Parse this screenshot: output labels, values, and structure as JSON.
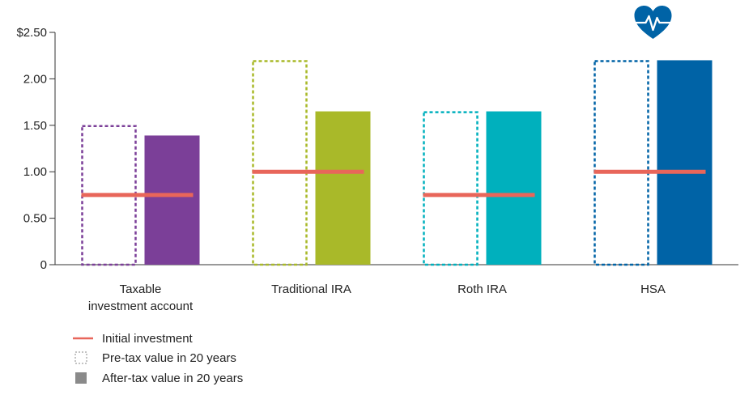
{
  "chart_data": {
    "type": "bar",
    "categories": [
      [
        "Taxable",
        "investment account"
      ],
      [
        "Traditional IRA"
      ],
      [
        "Roth IRA"
      ],
      [
        "HSA"
      ]
    ],
    "y_tick_labels": [
      "$2.50",
      "2.00",
      "1.50",
      "1.00",
      "0.50",
      "0"
    ],
    "ylim": [
      0,
      2.5
    ],
    "series": [
      {
        "name": "Pre-tax value in 20 years",
        "style": "dashed-outline",
        "values": [
          1.5,
          2.2,
          1.65,
          2.2
        ]
      },
      {
        "name": "After-tax value in 20 years",
        "style": "solid",
        "values": [
          1.39,
          1.65,
          1.65,
          2.2
        ]
      },
      {
        "name": "Initial investment",
        "style": "line",
        "values": [
          0.75,
          1.0,
          0.75,
          1.0
        ]
      }
    ],
    "category_colors": [
      "#7b3f98",
      "#a9b929",
      "#00b0bd",
      "#0063a6"
    ],
    "initial_line_color": "#e8665a",
    "legend_square_color": "#8a8a8a",
    "grid": false,
    "legend_position": "bottom-left",
    "icon": {
      "name": "heart-pulse-icon",
      "category": "HSA",
      "color": "#0063a6"
    }
  }
}
